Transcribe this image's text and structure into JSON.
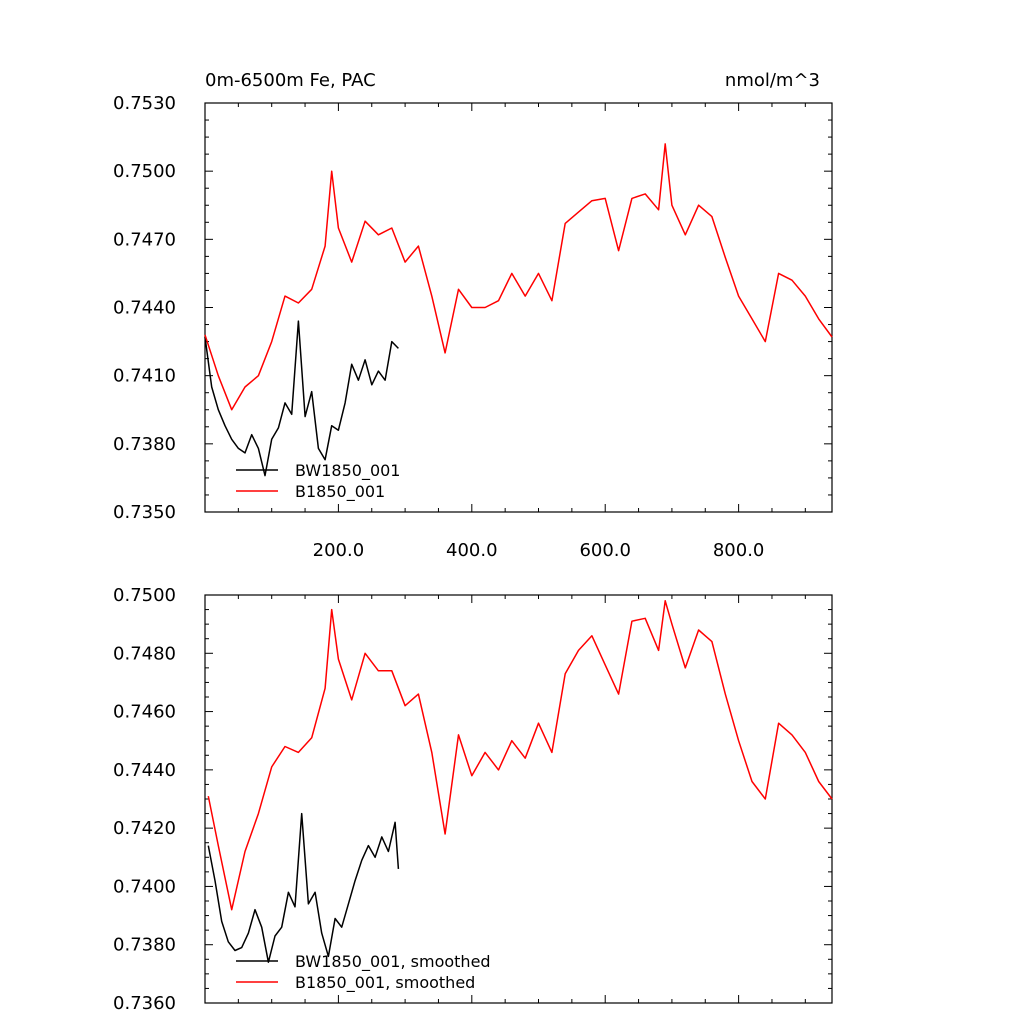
{
  "chart_data": [
    {
      "type": "line",
      "title": "0m-6500m Fe, PAC",
      "units": "nmol/m^3",
      "xlim": [
        0,
        940
      ],
      "ylim": [
        0.735,
        0.753
      ],
      "xticks": [
        200,
        400,
        600,
        800
      ],
      "xtick_labels": [
        "200.0",
        "400.0",
        "600.0",
        "800.0"
      ],
      "yticks": [
        0.735,
        0.738,
        0.741,
        0.744,
        0.747,
        0.75,
        0.753
      ],
      "ytick_labels": [
        "0.7350",
        "0.7380",
        "0.7410",
        "0.7440",
        "0.7470",
        "0.7500",
        "0.7530"
      ],
      "legend_position": "bottom-left",
      "series": [
        {
          "name": "BW1850_001",
          "color": "#000000",
          "x": [
            0,
            10,
            20,
            30,
            40,
            50,
            60,
            70,
            80,
            90,
            100,
            110,
            120,
            130,
            140,
            150,
            160,
            170,
            180,
            190,
            200,
            210,
            220,
            230,
            240,
            250,
            260,
            270,
            280,
            290
          ],
          "values": [
            0.7427,
            0.7405,
            0.7395,
            0.7388,
            0.7382,
            0.7378,
            0.7376,
            0.7384,
            0.7378,
            0.7366,
            0.7382,
            0.7387,
            0.7398,
            0.7393,
            0.7434,
            0.7392,
            0.7403,
            0.7378,
            0.7373,
            0.7388,
            0.7386,
            0.7398,
            0.7415,
            0.7408,
            0.7417,
            0.7406,
            0.7412,
            0.7408,
            0.7425,
            0.7422
          ]
        },
        {
          "name": "B1850_001",
          "color": "#ff0000",
          "x": [
            0,
            20,
            40,
            60,
            80,
            100,
            120,
            140,
            160,
            180,
            190,
            200,
            220,
            240,
            260,
            280,
            300,
            320,
            340,
            360,
            380,
            400,
            420,
            440,
            460,
            480,
            500,
            520,
            540,
            560,
            580,
            600,
            620,
            640,
            660,
            680,
            690,
            700,
            720,
            740,
            760,
            780,
            800,
            820,
            840,
            860,
            880,
            900,
            920,
            940
          ],
          "values": [
            0.7428,
            0.741,
            0.7395,
            0.7405,
            0.741,
            0.7425,
            0.7445,
            0.7442,
            0.7448,
            0.7467,
            0.75,
            0.7475,
            0.746,
            0.7478,
            0.7472,
            0.7475,
            0.746,
            0.7467,
            0.7445,
            0.742,
            0.7448,
            0.744,
            0.744,
            0.7443,
            0.7455,
            0.7445,
            0.7455,
            0.7443,
            0.7477,
            0.7482,
            0.7487,
            0.7488,
            0.7465,
            0.7488,
            0.749,
            0.7483,
            0.7512,
            0.7485,
            0.7472,
            0.7485,
            0.748,
            0.7462,
            0.7445,
            0.7435,
            0.7425,
            0.7455,
            0.7452,
            0.7445,
            0.7435,
            0.7427
          ]
        }
      ]
    },
    {
      "type": "line",
      "title": "",
      "xlim": [
        0,
        940
      ],
      "ylim": [
        0.736,
        0.75
      ],
      "xticks": [
        200,
        400,
        600,
        800
      ],
      "yticks": [
        0.736,
        0.738,
        0.74,
        0.742,
        0.744,
        0.746,
        0.748,
        0.75
      ],
      "ytick_labels": [
        "0.7360",
        "0.7380",
        "0.7400",
        "0.7420",
        "0.7440",
        "0.7460",
        "0.7480",
        "0.7500"
      ],
      "legend_position": "bottom-left",
      "series": [
        {
          "name": "BW1850_001, smoothed",
          "color": "#000000",
          "x": [
            5,
            15,
            25,
            35,
            45,
            55,
            65,
            75,
            85,
            95,
            105,
            115,
            125,
            135,
            145,
            155,
            165,
            175,
            185,
            195,
            205,
            215,
            225,
            235,
            245,
            255,
            265,
            275,
            285,
            290
          ],
          "values": [
            0.7414,
            0.7402,
            0.7388,
            0.7381,
            0.7378,
            0.7379,
            0.7384,
            0.7392,
            0.7386,
            0.7374,
            0.7383,
            0.7386,
            0.7398,
            0.7393,
            0.7425,
            0.7394,
            0.7398,
            0.7384,
            0.7376,
            0.7389,
            0.7386,
            0.7394,
            0.7402,
            0.7409,
            0.7414,
            0.741,
            0.7417,
            0.7412,
            0.7422,
            0.7406
          ]
        },
        {
          "name": "B1850_001, smoothed",
          "color": "#ff0000",
          "x": [
            5,
            20,
            40,
            60,
            80,
            100,
            120,
            140,
            160,
            180,
            190,
            200,
            220,
            240,
            260,
            280,
            300,
            320,
            340,
            360,
            380,
            400,
            420,
            440,
            460,
            480,
            500,
            520,
            540,
            560,
            580,
            600,
            620,
            640,
            660,
            680,
            690,
            700,
            720,
            740,
            760,
            780,
            800,
            820,
            840,
            860,
            880,
            900,
            920,
            940
          ],
          "values": [
            0.7431,
            0.7414,
            0.7392,
            0.7412,
            0.7425,
            0.7441,
            0.7448,
            0.7446,
            0.7451,
            0.7468,
            0.7495,
            0.7478,
            0.7464,
            0.748,
            0.7474,
            0.7474,
            0.7462,
            0.7466,
            0.7446,
            0.7418,
            0.7452,
            0.7438,
            0.7446,
            0.744,
            0.745,
            0.7444,
            0.7456,
            0.7446,
            0.7473,
            0.7481,
            0.7486,
            0.7476,
            0.7466,
            0.7491,
            0.7492,
            0.7481,
            0.7498,
            0.749,
            0.7475,
            0.7488,
            0.7484,
            0.7466,
            0.745,
            0.7436,
            0.743,
            0.7456,
            0.7452,
            0.7446,
            0.7436,
            0.743
          ]
        }
      ]
    }
  ]
}
